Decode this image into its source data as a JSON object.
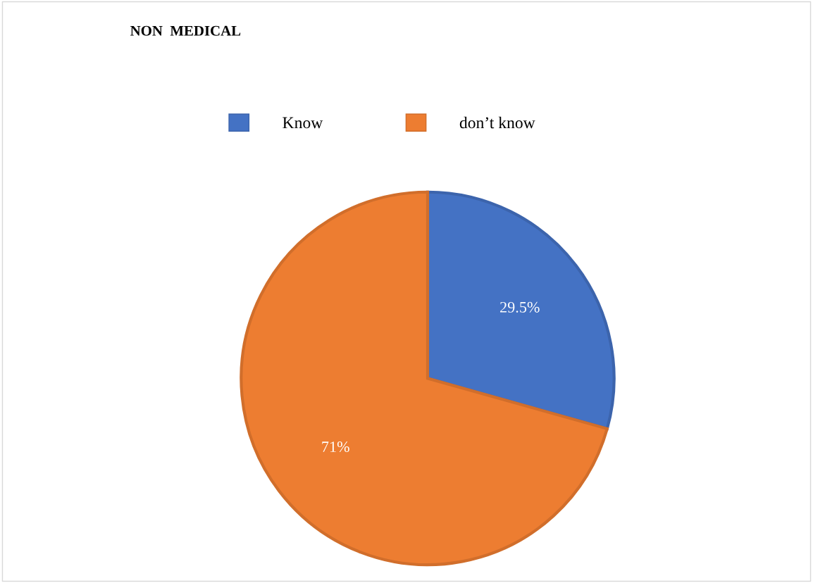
{
  "chart_data": {
    "type": "pie",
    "title": "NON  MEDICAL",
    "categories": [
      "Know",
      "don’t know"
    ],
    "values": [
      29.5,
      71
    ],
    "colors": [
      "#4472c4",
      "#ed7d31"
    ],
    "value_labels": [
      "29.5%",
      "71%"
    ],
    "legend": "top"
  }
}
